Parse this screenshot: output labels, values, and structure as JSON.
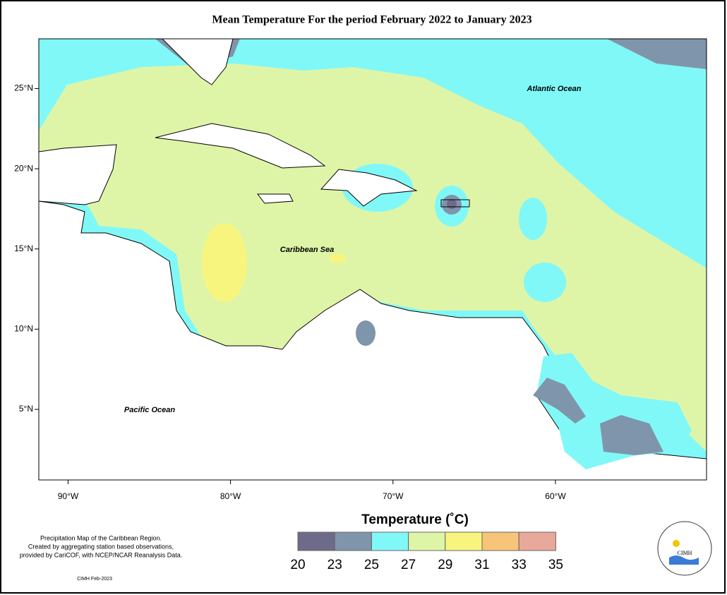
{
  "title": "Mean Temperature For the period February 2022 to January 2023",
  "map": {
    "xlim": [
      -91.8,
      -50.7
    ],
    "ylim": [
      0.6,
      28.1
    ],
    "xticks": [
      {
        "value": -90,
        "label": "90°W"
      },
      {
        "value": -80,
        "label": "80°W"
      },
      {
        "value": -70,
        "label": "70°W"
      },
      {
        "value": -60,
        "label": "60°W"
      }
    ],
    "yticks": [
      {
        "value": 5,
        "label": "5°N"
      },
      {
        "value": 10,
        "label": "10°N"
      },
      {
        "value": 15,
        "label": "15°N"
      },
      {
        "value": 20,
        "label": "20°N"
      },
      {
        "value": 25,
        "label": "25°N"
      }
    ],
    "labels": [
      "Atlantic Ocean",
      "Caribbean Sea",
      "Pacific Ocean"
    ]
  },
  "legend": {
    "title": "Temperature (˚C)",
    "bins": [
      20,
      23,
      25,
      27,
      29,
      31,
      33,
      35
    ],
    "colors": [
      "#6e6a8a",
      "#7f95ab",
      "#80f8f8",
      "#def5a8",
      "#f8f57e",
      "#f7c57a",
      "#e8a99a"
    ]
  },
  "notes": [
    "Precipitation Map of the Caribbean Region.",
    "Created by aggregating station based observations,",
    "provided by CariCOF, with NCEP/NCAR Reanalysis Data."
  ],
  "credit": "CIMH Feb-2023",
  "logo": "CIMH"
}
